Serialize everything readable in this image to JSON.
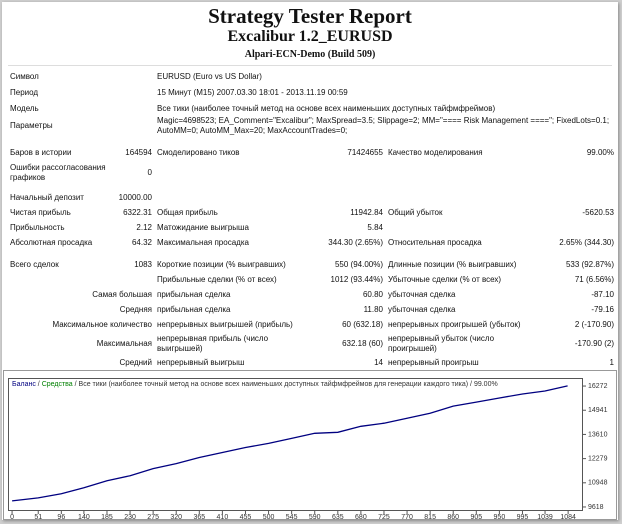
{
  "header": {
    "title": "Strategy Tester Report",
    "subtitle": "Excalibur 1.2_EURUSD",
    "server": "Alpari-ECN-Demo (Build 509)"
  },
  "table": {
    "info": [
      [
        "Символ",
        "EURUSD (Euro vs US Dollar)"
      ],
      [
        "Период",
        "15 Минут (M15) 2007.03.30 18:01 - 2013.11.19 00:59"
      ],
      [
        "Модель",
        "Все тики (наиболее точный метод на основе всех наименьших доступных тайфмфреймов)"
      ],
      [
        "Параметры",
        "Magic=4698523; EA_Comment=\"Excalibur\"; MaxSpread=3.5; Slippage=2; MM=\"==== Risk Management ====\"; FixedLots=0.1; AutoMM=0; AutoMM_Max=20; MaxAccountTrades=0;"
      ]
    ],
    "stats": [
      [
        "Баров в истории",
        "164594",
        "Смоделировано тиков",
        "71424655",
        "Качество моделирования",
        "99.00%"
      ],
      [
        "Ошибки рассогласования графиков",
        "0",
        null,
        null,
        null,
        null
      ],
      [
        "Начальный депозит",
        "10000.00",
        null,
        null,
        null,
        null
      ],
      [
        "Чистая прибыль",
        "6322.31",
        "Общая прибыль",
        "11942.84",
        "Общий убыток",
        "-5620.53"
      ],
      [
        "Прибыльность",
        "2.12",
        "Матожидание выигрыша",
        "5.84",
        null,
        null
      ],
      [
        "Абсолютная просадка",
        "64.32",
        "Максимальная просадка",
        "344.30 (2.65%)",
        "Относительная просадка",
        "2.65% (344.30)"
      ],
      [
        "Всего сделок",
        "1083",
        "Короткие позиции (% выигравших)",
        "550 (94.00%)",
        "Длинные позиции (% выигравших)",
        "533 (92.87%)"
      ],
      [
        null,
        null,
        "Прибыльные сделки (% от всех)",
        "1012 (93.44%)",
        "Убыточные сделки (% от всех)",
        "71 (6.56%)"
      ],
      [
        null,
        "Самая большая",
        "прибыльная сделка",
        "60.80",
        "убыточная сделка",
        "-87.10"
      ],
      [
        null,
        "Средняя",
        "прибыльная сделка",
        "11.80",
        "убыточная сделка",
        "-79.16"
      ],
      [
        null,
        "Максимальное количество",
        "непрерывных выигрышей (прибыль)",
        "60 (632.18)",
        "непрерывных проигрышей (убыток)",
        "2 (-170.90)"
      ],
      [
        null,
        "Максимальная",
        "непрерывная прибыль (число выигрышей)",
        "632.18 (60)",
        "непрерывный убыток (число проигрышей)",
        "-170.90 (2)"
      ],
      [
        null,
        "Средний",
        "непрерывный выигрыш",
        "14",
        "непрерывный проигрыш",
        "1"
      ]
    ]
  },
  "chart_data": {
    "type": "line",
    "legend": [
      {
        "text": "Средства",
        "color": "#008000"
      },
      {
        "text": "Все тики (наиболее точный метод на основе всех наименьших доступных тайфмфреймов для генерации каждого тика)",
        "color": "#333333"
      },
      {
        "text": "99.00%",
        "color": "#333333"
      }
    ],
    "legend_separator": " / ",
    "x": [
      0,
      51,
      96,
      140,
      185,
      230,
      275,
      320,
      365,
      410,
      455,
      500,
      545,
      590,
      635,
      680,
      725,
      770,
      815,
      860,
      905,
      950,
      995,
      1039,
      1083
    ],
    "series": [
      {
        "name": "Баланс",
        "color": "#000080",
        "values": [
          9951,
          10118,
          10340,
          10672,
          11061,
          11338,
          11727,
          12004,
          12338,
          12615,
          12893,
          13115,
          13392,
          13670,
          13725,
          14058,
          14225,
          14502,
          14780,
          15168,
          15390,
          15612,
          15834,
          16000,
          16278
        ]
      }
    ],
    "xlim": [
      -6,
      1113
    ],
    "xticks": [
      0,
      51,
      96,
      140,
      185,
      230,
      275,
      320,
      365,
      410,
      455,
      500,
      545,
      590,
      635,
      680,
      725,
      770,
      815,
      860,
      905,
      950,
      995,
      1039,
      1084
    ],
    "ylim": [
      9396,
      16660
    ],
    "yticks": [
      9618,
      10948,
      12279,
      13610,
      14941,
      16272
    ]
  }
}
